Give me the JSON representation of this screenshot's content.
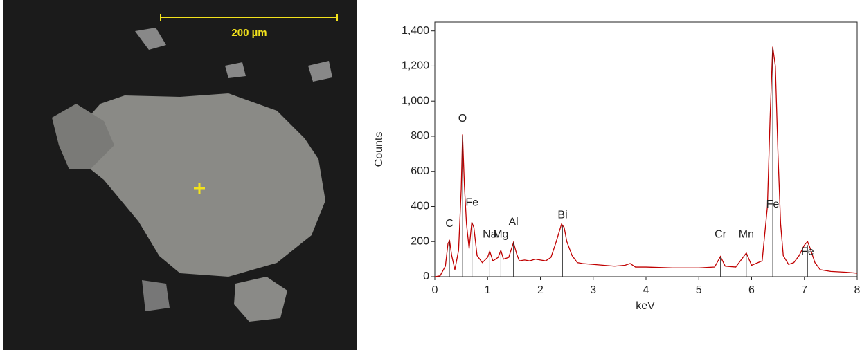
{
  "image": {
    "scale_label": "200 µm"
  },
  "chart_data": {
    "type": "line",
    "xlabel": "keV",
    "ylabel": "Counts",
    "xlim": [
      0,
      8
    ],
    "xticks": [
      0,
      1,
      2,
      3,
      4,
      5,
      6,
      7,
      8
    ],
    "ylim": [
      0,
      1450
    ],
    "yticks": [
      0,
      200,
      400,
      600,
      800,
      {
        "value": 1000,
        "label": "1,000"
      },
      {
        "value": 1200,
        "label": "1,200"
      },
      {
        "value": 1400,
        "label": "1,400"
      }
    ],
    "color": "#c00000",
    "x": [
      0,
      0.1,
      0.2,
      0.25,
      0.28,
      0.32,
      0.38,
      0.45,
      0.5,
      0.525,
      0.56,
      0.6,
      0.65,
      0.7,
      0.74,
      0.8,
      0.9,
      1.0,
      1.04,
      1.1,
      1.2,
      1.25,
      1.3,
      1.4,
      1.49,
      1.55,
      1.6,
      1.7,
      1.8,
      1.9,
      2.0,
      2.1,
      2.2,
      2.3,
      2.4,
      2.45,
      2.5,
      2.6,
      2.7,
      2.8,
      3.0,
      3.2,
      3.4,
      3.6,
      3.7,
      3.8,
      4.0,
      4.5,
      5.0,
      5.3,
      5.41,
      5.5,
      5.7,
      5.9,
      6.0,
      6.2,
      6.3,
      6.35,
      6.4,
      6.45,
      6.5,
      6.55,
      6.6,
      6.7,
      6.8,
      6.9,
      7.0,
      7.06,
      7.1,
      7.2,
      7.3,
      7.5,
      7.8,
      8.0
    ],
    "values": [
      0,
      5,
      60,
      190,
      205,
      120,
      40,
      150,
      500,
      810,
      520,
      300,
      160,
      310,
      280,
      120,
      80,
      110,
      145,
      90,
      110,
      150,
      100,
      110,
      195,
      130,
      90,
      95,
      90,
      100,
      95,
      90,
      110,
      200,
      300,
      280,
      200,
      120,
      80,
      75,
      70,
      65,
      60,
      65,
      75,
      55,
      55,
      50,
      50,
      55,
      115,
      60,
      55,
      135,
      65,
      90,
      400,
      900,
      1310,
      1200,
      700,
      300,
      120,
      70,
      80,
      120,
      180,
      200,
      170,
      80,
      40,
      30,
      25,
      20
    ],
    "annotations": [
      {
        "text": "C",
        "x": 0.277,
        "y": 300,
        "line_top": 200
      },
      {
        "text": "O",
        "x": 0.525,
        "y": 900,
        "line_top": 800
      },
      {
        "text": "Fe",
        "x": 0.705,
        "y": 420,
        "line_top": 310
      },
      {
        "text": "Na",
        "x": 1.04,
        "y": 240,
        "line_top": 140
      },
      {
        "text": "Mg",
        "x": 1.25,
        "y": 240,
        "line_top": 150
      },
      {
        "text": "Al",
        "x": 1.49,
        "y": 310,
        "line_top": 195
      },
      {
        "text": "Bi",
        "x": 2.42,
        "y": 350,
        "line_top": 290
      },
      {
        "text": "Cr",
        "x": 5.41,
        "y": 240,
        "line_top": 110
      },
      {
        "text": "Mn",
        "x": 5.9,
        "y": 240,
        "line_top": 130
      },
      {
        "text": "Fe",
        "x": 6.4,
        "y": 410,
        "line_top": 1300
      },
      {
        "text": "Fe",
        "x": 7.06,
        "y": 140,
        "line_top": 180
      }
    ]
  }
}
